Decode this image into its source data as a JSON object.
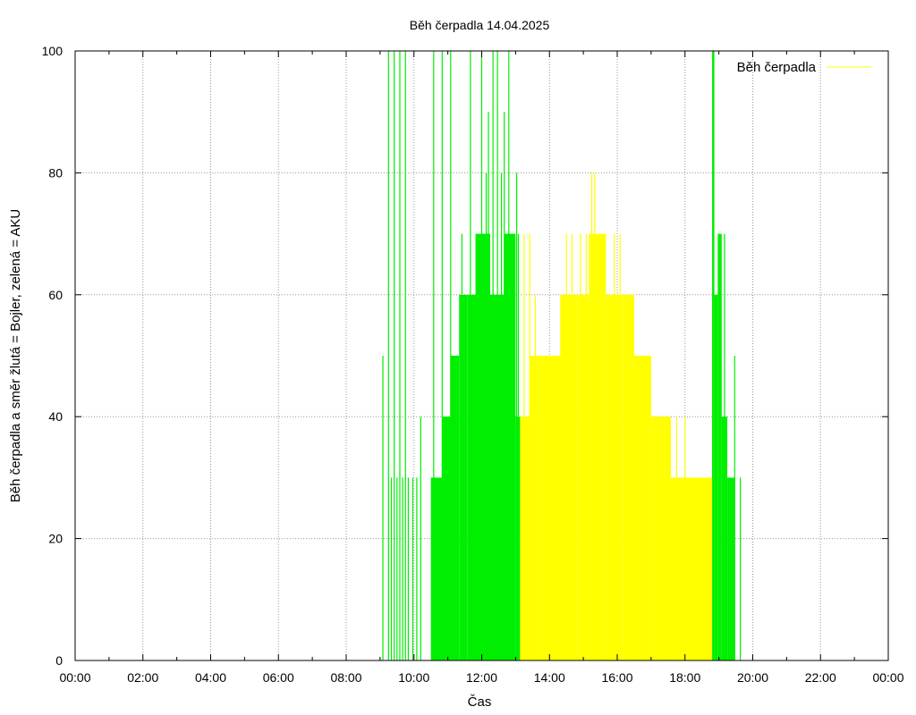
{
  "chart_data": {
    "type": "bar",
    "title": "Běh čerpadla 14.04.2025",
    "xlabel": "Čas",
    "ylabel": "Běh čerpadla a směr žlutá = Bojler, zelená = AKU",
    "xlim_minutes": [
      0,
      1440
    ],
    "ylim": [
      0,
      100
    ],
    "x_ticks": [
      "00:00",
      "02:00",
      "04:00",
      "06:00",
      "08:00",
      "10:00",
      "12:00",
      "14:00",
      "16:00",
      "18:00",
      "20:00",
      "22:00",
      "00:00"
    ],
    "y_ticks": [
      "0",
      "20",
      "40",
      "60",
      "80",
      "100"
    ],
    "grid": true,
    "legend": {
      "position": "top-right",
      "label": "Běh čerpadla",
      "color": "#ffff00"
    },
    "colors": {
      "bojler": "#ffff00",
      "aku": "#00ee00"
    },
    "series": [
      {
        "direction": "aku",
        "spikes": [
          [
            "09:05",
            50
          ],
          [
            "09:15",
            100
          ],
          [
            "09:20",
            30
          ],
          [
            "09:25",
            100
          ],
          [
            "09:30",
            30
          ],
          [
            "09:35",
            100
          ],
          [
            "09:40",
            30
          ],
          [
            "09:45",
            100
          ],
          [
            "09:50",
            30
          ],
          [
            "09:58",
            30
          ],
          [
            "10:05",
            30
          ],
          [
            "10:12",
            40
          ],
          [
            "10:35",
            100
          ],
          [
            "10:50",
            100
          ],
          [
            "11:05",
            100
          ],
          [
            "11:25",
            70
          ],
          [
            "11:40",
            100
          ],
          [
            "11:50",
            70
          ],
          [
            "12:00",
            100
          ],
          [
            "12:08",
            80
          ],
          [
            "12:12",
            90
          ],
          [
            "12:20",
            100
          ],
          [
            "12:28",
            100
          ],
          [
            "12:35",
            80
          ],
          [
            "12:40",
            90
          ],
          [
            "12:48",
            100
          ],
          [
            "12:55",
            70
          ],
          [
            "13:02",
            80
          ],
          [
            "13:05",
            70
          ]
        ],
        "segments": [
          [
            "10:30",
            "10:50",
            30
          ],
          [
            "10:50",
            "11:05",
            40
          ],
          [
            "11:05",
            "11:20",
            50
          ],
          [
            "11:20",
            "11:35",
            60
          ],
          [
            "11:35",
            "11:50",
            60
          ],
          [
            "11:50",
            "12:15",
            70
          ],
          [
            "12:15",
            "12:40",
            60
          ],
          [
            "12:40",
            "13:00",
            70
          ],
          [
            "13:00",
            "13:08",
            40
          ],
          [
            "18:48",
            "18:52",
            100
          ],
          [
            "18:52",
            "18:58",
            60
          ],
          [
            "18:58",
            "19:05",
            70
          ],
          [
            "19:05",
            "19:15",
            40
          ],
          [
            "19:15",
            "19:28",
            30
          ]
        ],
        "tail_spikes": [
          [
            "19:10",
            70
          ],
          [
            "19:28",
            50
          ],
          [
            "19:38",
            30
          ]
        ]
      },
      {
        "direction": "bojler",
        "spikes": [
          [
            "13:15",
            70
          ],
          [
            "13:25",
            70
          ],
          [
            "13:35",
            60
          ],
          [
            "13:55",
            40
          ],
          [
            "14:20",
            60
          ],
          [
            "14:30",
            70
          ],
          [
            "14:40",
            70
          ],
          [
            "14:55",
            70
          ],
          [
            "15:05",
            70
          ],
          [
            "15:15",
            80
          ],
          [
            "15:20",
            80
          ],
          [
            "15:30",
            70
          ],
          [
            "15:45",
            60
          ],
          [
            "15:55",
            70
          ],
          [
            "16:05",
            70
          ],
          [
            "16:15",
            60
          ],
          [
            "16:25",
            60
          ],
          [
            "16:40",
            50
          ],
          [
            "16:55",
            50
          ],
          [
            "17:05",
            40
          ],
          [
            "17:15",
            40
          ],
          [
            "17:30",
            40
          ],
          [
            "17:45",
            40
          ],
          [
            "18:00",
            40
          ]
        ],
        "segments": [
          [
            "13:08",
            "13:25",
            40
          ],
          [
            "13:25",
            "13:40",
            50
          ],
          [
            "13:40",
            "14:20",
            50
          ],
          [
            "14:20",
            "14:50",
            60
          ],
          [
            "14:50",
            "15:10",
            60
          ],
          [
            "15:10",
            "15:40",
            70
          ],
          [
            "15:40",
            "16:10",
            60
          ],
          [
            "16:10",
            "16:30",
            60
          ],
          [
            "16:30",
            "17:00",
            50
          ],
          [
            "17:00",
            "17:35",
            40
          ],
          [
            "17:35",
            "18:00",
            30
          ],
          [
            "18:00",
            "18:48",
            30
          ]
        ]
      }
    ]
  }
}
